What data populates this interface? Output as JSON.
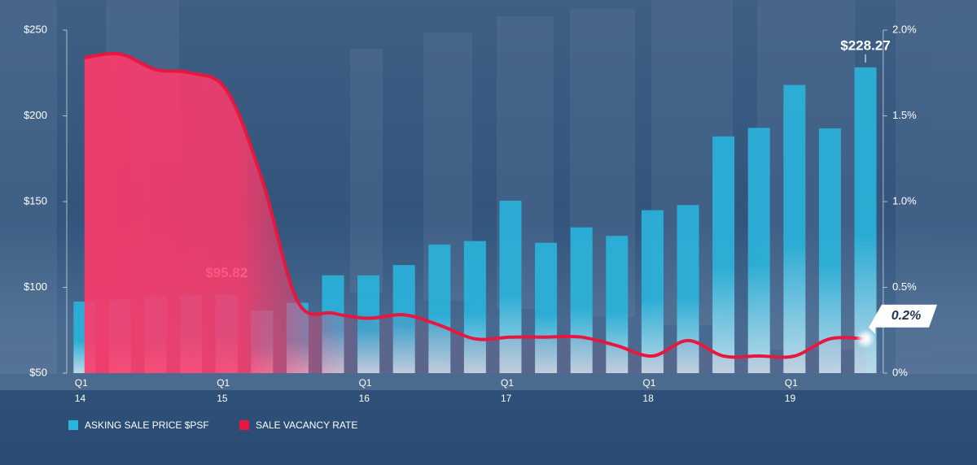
{
  "chart_data": {
    "type": "bar-line",
    "categories": [
      "Q1\n14",
      null,
      null,
      null,
      "Q1\n15",
      null,
      null,
      null,
      "Q1\n16",
      null,
      null,
      null,
      "Q1\n17",
      null,
      null,
      null,
      "Q1\n18",
      null,
      null,
      null,
      "Q1\n19",
      null,
      null
    ],
    "series": [
      {
        "name": "ASKING SALE PRICE $PSF",
        "color": "#2ab4dc",
        "type": "bar",
        "axis": "y",
        "values": [
          91.7,
          92.7,
          94.5,
          95.5,
          95.82,
          86.5,
          91,
          107,
          107,
          113,
          125,
          127,
          150.5,
          126,
          135,
          130,
          145,
          148,
          188,
          193,
          218,
          192.7,
          228.27
        ],
        "value_labels": [
          null,
          null,
          null,
          null,
          "$95.82",
          null,
          null,
          null,
          null,
          null,
          null,
          null,
          null,
          null,
          null,
          null,
          null,
          null,
          null,
          null,
          null,
          null,
          "$228.27"
        ]
      },
      {
        "name": "SALE VACANCY RATE",
        "color": "#e8173f",
        "type": "line",
        "axis": "y2",
        "values": [
          1.84,
          1.86,
          1.77,
          1.75,
          1.65,
          1.13,
          0.42,
          0.35,
          0.32,
          0.34,
          0.28,
          0.2,
          0.21,
          0.21,
          0.21,
          0.16,
          0.1,
          0.19,
          0.1,
          0.1,
          0.1,
          0.2,
          0.2
        ],
        "value_labels": [
          null,
          null,
          null,
          null,
          null,
          null,
          null,
          null,
          null,
          null,
          null,
          null,
          null,
          null,
          null,
          null,
          null,
          null,
          null,
          null,
          null,
          null,
          "0.2%"
        ]
      }
    ],
    "ylim": [
      50,
      250
    ],
    "yticks": [
      {
        "value": 50,
        "label": "$50"
      },
      {
        "value": 100,
        "label": "$100"
      },
      {
        "value": 150,
        "label": "$150"
      },
      {
        "value": 200,
        "label": "$200"
      },
      {
        "value": 250,
        "label": "$250"
      }
    ],
    "y2lim": [
      0,
      2
    ],
    "y2ticks": [
      {
        "value": 0,
        "label": "0%"
      },
      {
        "value": 0.5,
        "label": "0.5%"
      },
      {
        "value": 1,
        "label": "1.0%"
      },
      {
        "value": 1.5,
        "label": "1.5%"
      },
      {
        "value": 2,
        "label": "2.0%"
      }
    ],
    "grid": false,
    "legend": "bottom-left"
  }
}
